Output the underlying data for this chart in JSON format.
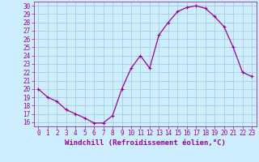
{
  "x": [
    0,
    1,
    2,
    3,
    4,
    5,
    6,
    7,
    8,
    9,
    10,
    11,
    12,
    13,
    14,
    15,
    16,
    17,
    18,
    19,
    20,
    21,
    22,
    23
  ],
  "y": [
    20.0,
    19.0,
    18.5,
    17.5,
    17.0,
    16.5,
    15.9,
    15.9,
    16.8,
    20.0,
    22.5,
    24.0,
    22.5,
    26.5,
    28.0,
    29.3,
    29.8,
    30.0,
    29.7,
    28.7,
    27.5,
    25.0,
    22.0,
    21.5
  ],
  "line_color": "#990099",
  "marker": "+",
  "marker_size": 3,
  "marker_linewidth": 0.8,
  "line_width": 0.9,
  "bg_color": "#cceeff",
  "grid_color": "#aaccdd",
  "xlabel": "Windchill (Refroidissement éolien,°C)",
  "xlim": [
    -0.5,
    23.5
  ],
  "ylim": [
    15.5,
    30.5
  ],
  "yticks": [
    16,
    17,
    18,
    19,
    20,
    21,
    22,
    23,
    24,
    25,
    26,
    27,
    28,
    29,
    30
  ],
  "xticks": [
    0,
    1,
    2,
    3,
    4,
    5,
    6,
    7,
    8,
    9,
    10,
    11,
    12,
    13,
    14,
    15,
    16,
    17,
    18,
    19,
    20,
    21,
    22,
    23
  ],
  "tick_fontsize": 5.5,
  "label_fontsize": 6.5
}
